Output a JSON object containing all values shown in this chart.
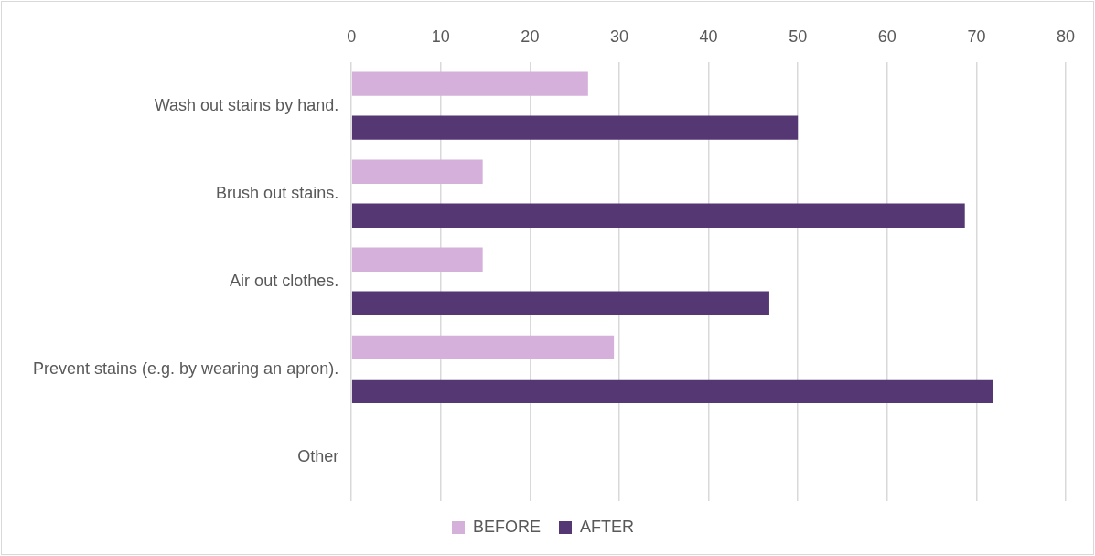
{
  "chart_data": {
    "type": "bar",
    "orientation": "horizontal",
    "categories": [
      "Wash out stains by hand.",
      "Brush out stains.",
      "Air out clothes.",
      "Prevent stains (e.g. by wearing an apron).",
      "Other"
    ],
    "series": [
      {
        "name": "BEFORE",
        "color": "#d4b0da",
        "values": [
          26.5,
          14.7,
          14.7,
          29.4,
          null
        ]
      },
      {
        "name": "AFTER",
        "color": "#553774",
        "values": [
          50,
          68.7,
          46.8,
          71.9,
          null
        ]
      }
    ],
    "xlim": [
      0,
      80
    ],
    "xticks": [
      0,
      10,
      20,
      30,
      40,
      50,
      60,
      70,
      80
    ],
    "grid": "x",
    "legend": "bottom"
  }
}
